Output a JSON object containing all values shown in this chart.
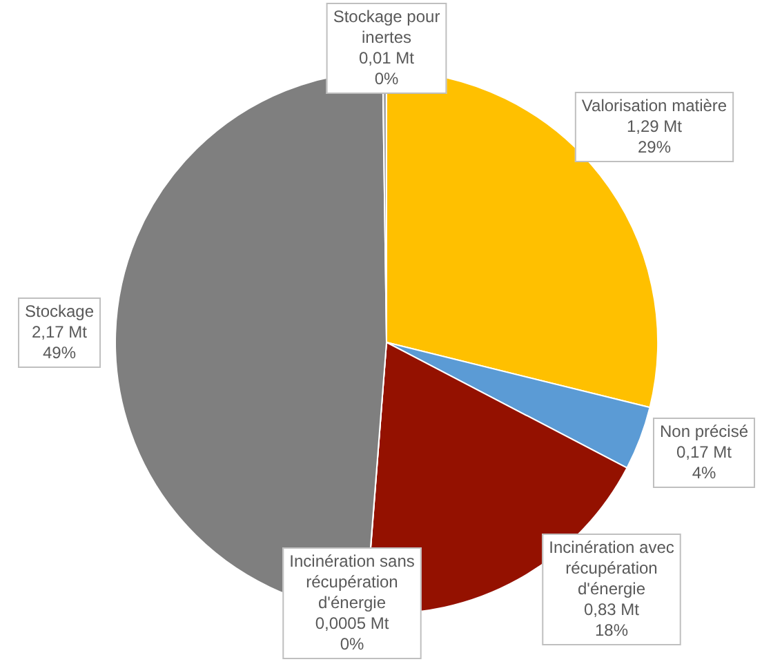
{
  "chart_data": {
    "type": "pie",
    "categories": [
      "Valorisation matière",
      "Non précisé",
      "Incinération avec récupération d'énergie",
      "Incinération sans récupération d'énergie",
      "Stockage",
      "Stockage pour inertes"
    ],
    "values": [
      1.29,
      0.17,
      0.83,
      0.0005,
      2.17,
      0.01
    ],
    "colors": [
      "#ffc000",
      "#5b9bd5",
      "#941100",
      "#264478",
      "#7f7f7f",
      "#a5a5a5"
    ],
    "value_labels": [
      "1,29 Mt\n29%",
      "0,17 Mt\n4%",
      "0,83 Mt\n18%",
      "0,0005 Mt\n0%",
      "2,17 Mt\n49%",
      "0,01 Mt\n0%"
    ],
    "legend": false
  }
}
